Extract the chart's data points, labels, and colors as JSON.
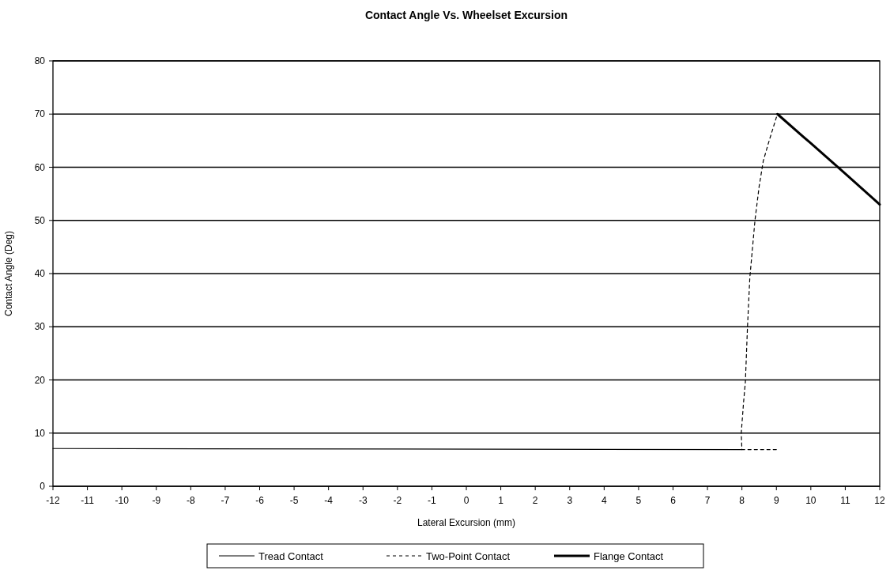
{
  "chart_data": {
    "type": "line",
    "title": "Contact Angle Vs. Wheelset Excursion",
    "xlabel": "Lateral Excursion (mm)",
    "ylabel": "Contact Angle (Deg)",
    "xlim": [
      -12,
      12
    ],
    "xticks": [
      -12,
      -11,
      -10,
      -9,
      -8,
      -7,
      -6,
      -5,
      -4,
      -3,
      -2,
      -1,
      0,
      1,
      2,
      3,
      4,
      5,
      6,
      7,
      8,
      9,
      10,
      11,
      12
    ],
    "ylim": [
      0,
      80
    ],
    "yticks": [
      0,
      10,
      20,
      30,
      40,
      50,
      60,
      70,
      80
    ],
    "grid": "y",
    "legend": "bottom",
    "series": [
      {
        "name": "Tread Contact",
        "color": "#000000",
        "line_style": "solid",
        "x": [
          -12,
          8
        ],
        "values": [
          7.1,
          6.9
        ]
      },
      {
        "name": "Two-Point Contact",
        "color": "#000000",
        "line_style": "dashed",
        "x": [
          9,
          8,
          7.98,
          8.05,
          8.1,
          8.16,
          8.23,
          8.38,
          8.5,
          8.62,
          8.8,
          9.03
        ],
        "values": [
          6.9,
          6.9,
          10,
          16,
          19.6,
          29.8,
          39.3,
          50.1,
          56.4,
          61.2,
          65.2,
          70
        ]
      },
      {
        "name": "Flange Contact",
        "color": "#000000",
        "line_style": "solid",
        "x": [
          9.03,
          10,
          11,
          12
        ],
        "values": [
          70,
          64.5,
          58.8,
          53
        ]
      }
    ]
  }
}
